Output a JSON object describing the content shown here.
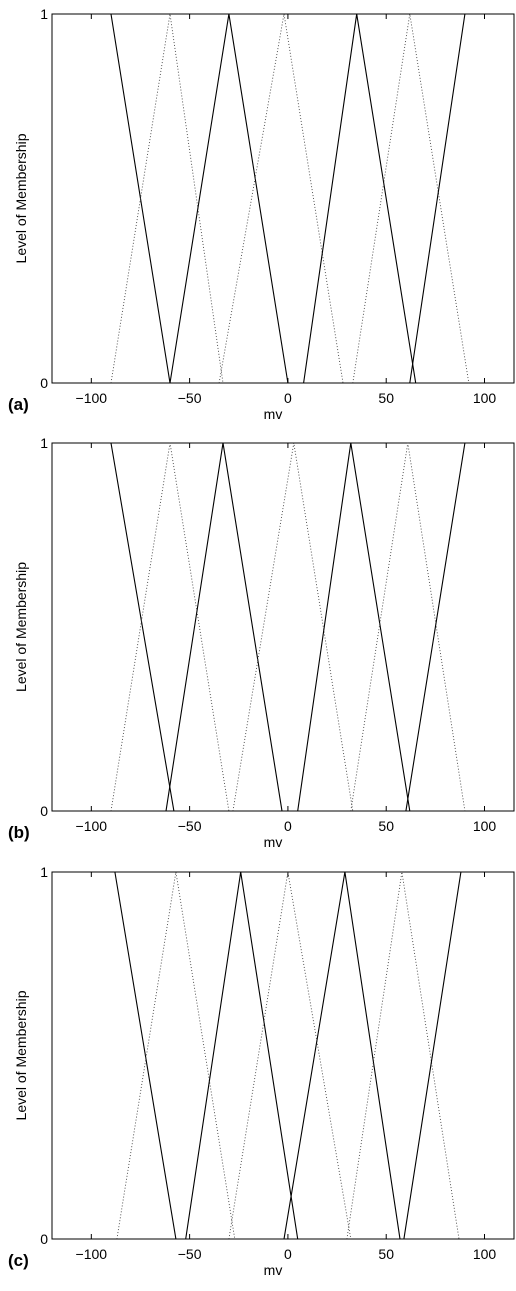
{
  "chart_data": [
    {
      "type": "line",
      "panel_label": "(a)",
      "xlabel": "mv",
      "ylabel": "Level of Membership",
      "xlim": [
        -120,
        115
      ],
      "ylim": [
        0,
        1
      ],
      "xticks": [
        -100,
        -50,
        0,
        50,
        100
      ],
      "xtick_labels": [
        "−100",
        "−50",
        "0",
        "50",
        "100"
      ],
      "yticks": [
        0,
        1
      ],
      "ytick_labels": [
        "0",
        "1"
      ],
      "grid": false,
      "legend": "none",
      "series": [
        {
          "style": "solid",
          "x": [
            -120,
            -90,
            -60
          ],
          "y": [
            1,
            1,
            0
          ]
        },
        {
          "style": "dotted",
          "x": [
            -90,
            -60,
            -33
          ],
          "y": [
            0,
            1,
            0
          ]
        },
        {
          "style": "solid",
          "x": [
            -60,
            -30,
            0
          ],
          "y": [
            0,
            1,
            0
          ]
        },
        {
          "style": "dotted",
          "x": [
            -35,
            -2,
            28
          ],
          "y": [
            0,
            1,
            0
          ]
        },
        {
          "style": "solid",
          "x": [
            8,
            35,
            65
          ],
          "y": [
            0,
            1,
            0
          ]
        },
        {
          "style": "dotted",
          "x": [
            33,
            62,
            92
          ],
          "y": [
            0,
            1,
            0
          ]
        },
        {
          "style": "solid",
          "x": [
            62,
            90,
            115
          ],
          "y": [
            0,
            1,
            1
          ]
        }
      ]
    },
    {
      "type": "line",
      "panel_label": "(b)",
      "xlabel": "mv",
      "ylabel": "Level of Membership",
      "xlim": [
        -120,
        115
      ],
      "ylim": [
        0,
        1
      ],
      "xticks": [
        -100,
        -50,
        0,
        50,
        100
      ],
      "xtick_labels": [
        "−100",
        "−50",
        "0",
        "50",
        "100"
      ],
      "yticks": [
        0,
        1
      ],
      "ytick_labels": [
        "0",
        "1"
      ],
      "grid": false,
      "legend": "none",
      "series": [
        {
          "style": "solid",
          "x": [
            -120,
            -90,
            -58
          ],
          "y": [
            1,
            1,
            0
          ]
        },
        {
          "style": "dotted",
          "x": [
            -90,
            -60,
            -30
          ],
          "y": [
            0,
            1,
            0
          ]
        },
        {
          "style": "solid",
          "x": [
            -62,
            -33,
            -3
          ],
          "y": [
            0,
            1,
            0
          ]
        },
        {
          "style": "dotted",
          "x": [
            -28,
            3,
            33
          ],
          "y": [
            0,
            1,
            0
          ]
        },
        {
          "style": "solid",
          "x": [
            5,
            32,
            62
          ],
          "y": [
            0,
            1,
            0
          ]
        },
        {
          "style": "dotted",
          "x": [
            32,
            61,
            90
          ],
          "y": [
            0,
            1,
            0
          ]
        },
        {
          "style": "solid",
          "x": [
            60,
            90,
            115
          ],
          "y": [
            0,
            1,
            1
          ]
        }
      ]
    },
    {
      "type": "line",
      "panel_label": "(c)",
      "xlabel": "mv",
      "ylabel": "Level of Membership",
      "xlim": [
        -120,
        115
      ],
      "ylim": [
        0,
        1
      ],
      "xticks": [
        -100,
        -50,
        0,
        50,
        100
      ],
      "xtick_labels": [
        "−100",
        "−50",
        "0",
        "50",
        "100"
      ],
      "yticks": [
        0,
        1
      ],
      "ytick_labels": [
        "0",
        "1"
      ],
      "grid": false,
      "legend": "none",
      "series": [
        {
          "style": "solid",
          "x": [
            -120,
            -88,
            -57
          ],
          "y": [
            1,
            1,
            0
          ]
        },
        {
          "style": "dotted",
          "x": [
            -87,
            -57,
            -27
          ],
          "y": [
            0,
            1,
            0
          ]
        },
        {
          "style": "solid",
          "x": [
            -52,
            -24,
            5
          ],
          "y": [
            0,
            1,
            0
          ]
        },
        {
          "style": "dotted",
          "x": [
            -30,
            0,
            32
          ],
          "y": [
            0,
            1,
            0
          ]
        },
        {
          "style": "solid",
          "x": [
            -2,
            29,
            57
          ],
          "y": [
            0,
            1,
            0
          ]
        },
        {
          "style": "dotted",
          "x": [
            30,
            58,
            87
          ],
          "y": [
            0,
            1,
            0
          ]
        },
        {
          "style": "solid",
          "x": [
            59,
            88,
            115
          ],
          "y": [
            0,
            1,
            1
          ]
        }
      ]
    }
  ]
}
